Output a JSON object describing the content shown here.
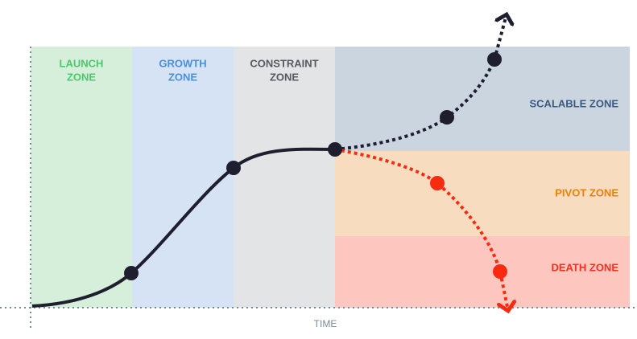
{
  "zones": [
    {
      "label": [
        "LAUNCH",
        "ZONE"
      ]
    },
    {
      "label": [
        "GROWTH",
        "ZONE"
      ]
    },
    {
      "label": [
        "CONSTRAINT",
        "ZONE"
      ]
    },
    {
      "label": [
        "SCALABLE ZONE"
      ]
    },
    {
      "label": [
        "PIVOT ZONE"
      ]
    },
    {
      "label": [
        "DEATH ZONE"
      ]
    }
  ],
  "axis": {
    "x_label": "TIME"
  }
}
